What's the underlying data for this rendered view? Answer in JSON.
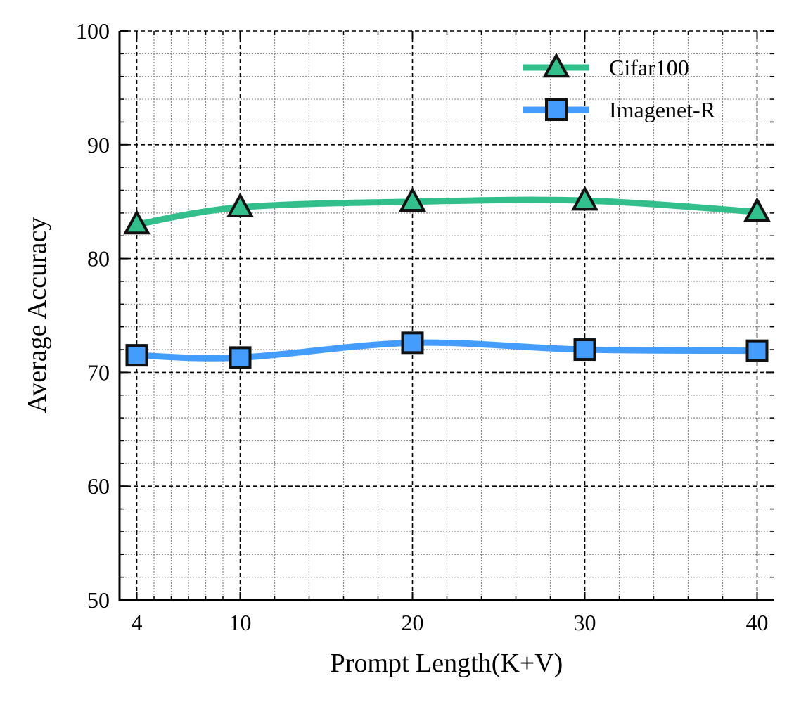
{
  "chart_data": {
    "type": "line",
    "xlabel": "Prompt Length(K+V)",
    "ylabel": "Average Accuracy",
    "x": [
      4,
      10,
      20,
      30,
      40
    ],
    "xlim": [
      3,
      41
    ],
    "ylim": [
      50,
      100
    ],
    "x_ticks": [
      4,
      10,
      20,
      30,
      40
    ],
    "x_minor_ticks": [
      5,
      6,
      7,
      8,
      9,
      12,
      14,
      16,
      18,
      22,
      24,
      26,
      28,
      32,
      34,
      36,
      38
    ],
    "y_ticks": [
      50,
      60,
      70,
      80,
      90,
      100
    ],
    "y_minor_step": 2,
    "grid": true,
    "legend_position": "top-right",
    "series": [
      {
        "name": "Cifar100",
        "values": [
          83.0,
          84.5,
          85.0,
          85.1,
          84.1
        ],
        "color": "#32bf8c",
        "marker": "triangle"
      },
      {
        "name": "Imagenet-R",
        "values": [
          71.5,
          71.3,
          72.6,
          72.0,
          71.9
        ],
        "color": "#449dfc",
        "marker": "square"
      }
    ]
  }
}
